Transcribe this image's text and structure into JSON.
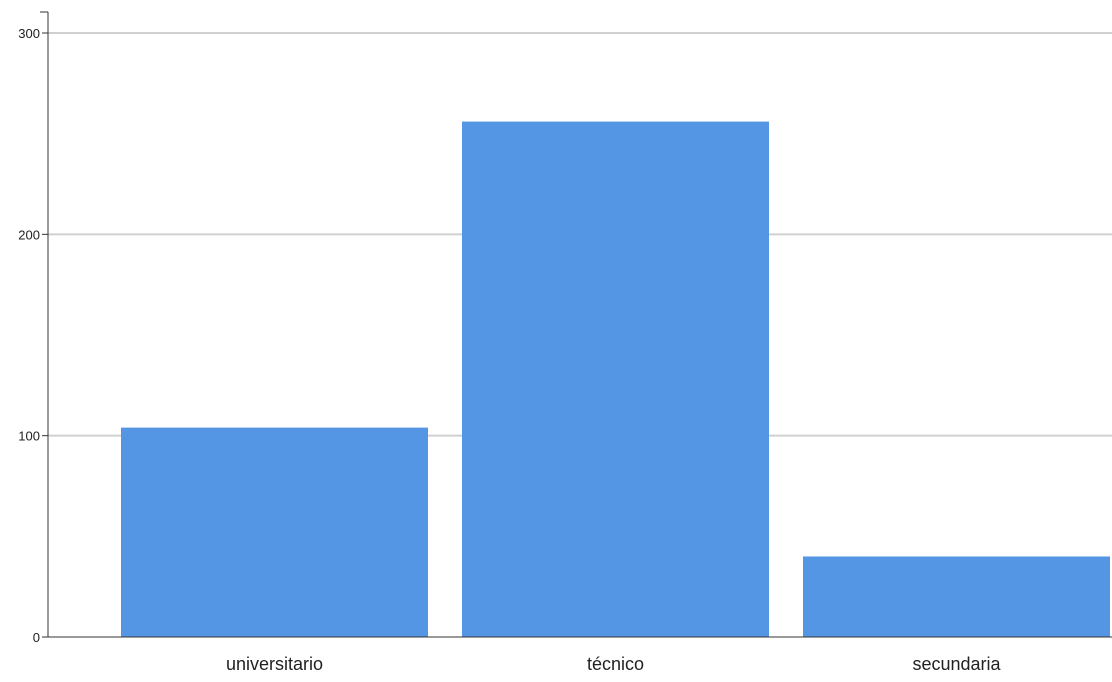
{
  "chart_data": {
    "type": "bar",
    "categories": [
      "universitario",
      "técnico",
      "secundaria"
    ],
    "values": [
      104,
      256,
      40
    ],
    "ylim": [
      0,
      300
    ],
    "yticks": [
      0,
      100,
      200,
      300
    ],
    "grid": true,
    "colors": {
      "bar": "#5596e4",
      "grid": "#d0d0d0",
      "axis": "#333333"
    }
  }
}
